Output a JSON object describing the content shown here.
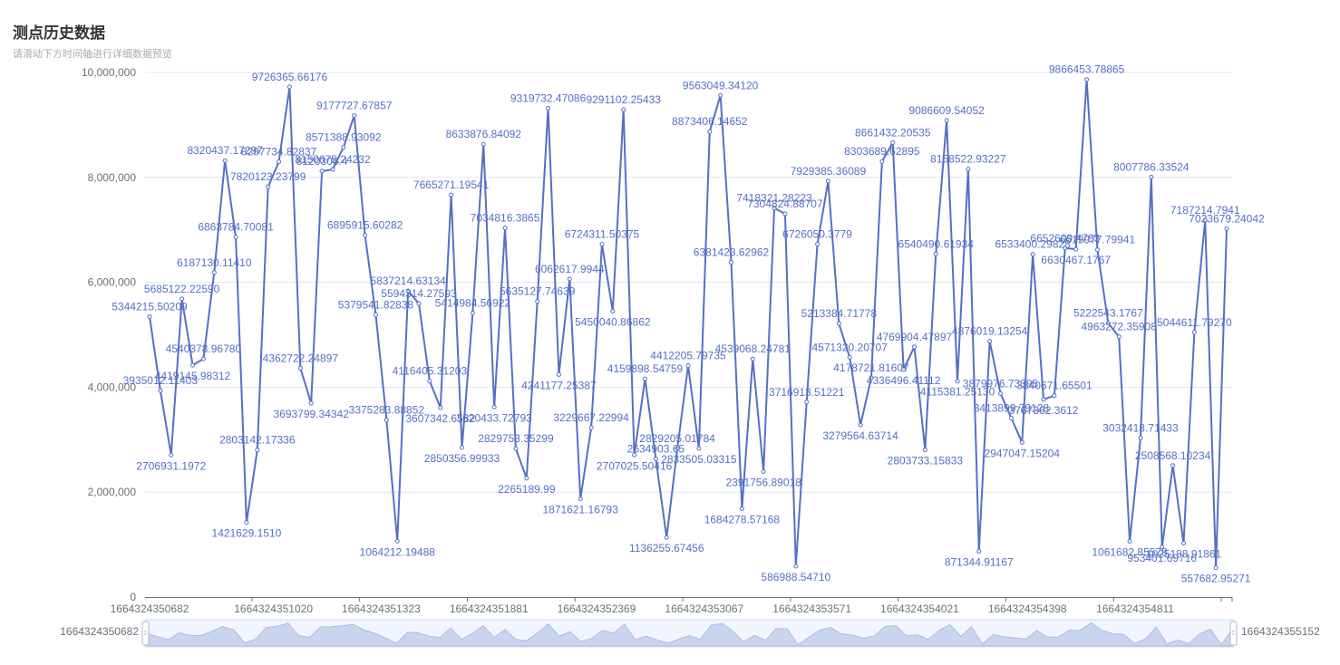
{
  "title": "测点历史数据",
  "subtitle": "请滑动下方时间轴进行详细数据预览",
  "colors": {
    "series": "#5470c6",
    "axis": "#6e7079",
    "grid": "#e0e6f1",
    "slider_fill": "#d2dbee"
  },
  "zoom": {
    "start_label": "1664324350682",
    "end_label": "1664324355152"
  },
  "chart_data": {
    "type": "line",
    "ylim": [
      0,
      10000000
    ],
    "y_ticks": [
      "0",
      "2,000,000",
      "4,000,000",
      "6,000,000",
      "8,000,000",
      "10,000,000"
    ],
    "x_tick_labels": [
      "1664324350682",
      "1664324351020",
      "1664324351323",
      "1664324351881",
      "1664324352369",
      "1664324353067",
      "1664324353571",
      "1664324354021",
      "1664324354398",
      "1664324354811"
    ],
    "grid": true,
    "series": [
      {
        "values": [
          5344215.50209,
          3935012.11403,
          2706931.1972,
          5685122.2259,
          4419145.98312,
          4540378.9678,
          6187130.1141,
          8320437.17297,
          6863784.70081,
          1421629.151,
          2803142.17336,
          7820123.23799,
          8297734.82837,
          9726365.66176,
          4362722.24897,
          3693799.34342,
          8120306.4,
          8150675.24232,
          8571388.93092,
          9177727.67857,
          6895915.60282,
          5379541.82838,
          3375283.88852,
          1064212.19488,
          5837214.63134,
          5594314.27593,
          4116405.31203,
          3607342.6582,
          7665271.19541,
          2850356.99933,
          5414984.56922,
          8633876.84092,
          3620433.72793,
          7034816.3865,
          2829753.35299,
          2265189.99,
          5635127.74639,
          9319732.47086,
          4241177.25387,
          6062617.9944,
          1871621.16793,
          3229667.22994,
          6724311.50375,
          5450040.86862,
          9291102.25433,
          2707025.50416,
          4159898.54759,
          2634903.65,
          1136255.67456,
          2829205.01784,
          4412205.79735,
          2833505.03315,
          8873406.14652,
          9563049.3412,
          6381423.62962,
          1684278.57168,
          4539068.24781,
          2391756.89018,
          7418321.28223,
          7304824.88707,
          586988.5471,
          3716913.51221,
          6726050.3779,
          7929385.36089,
          5213384.71778,
          4571320.20707,
          3279564.63714,
          4178721.81607,
          8303689.62895,
          8661432.20535,
          4336496.41112,
          4769904.47897,
          2803733.15833,
          6540490.61934,
          9086609.54052,
          4115381.2513,
          8158522.93227,
          871344.91167,
          4876019.13254,
          3879976.73395,
          3413899.79128,
          2947047.15204,
          6533400.29828,
          3767362.3612,
          3840671.65501,
          6652609.4783,
          6630467.1767,
          9866453.78865,
          6619977.79941,
          5222543.1767,
          4963272.35908,
          1061682.85578,
          3032418.71433,
          8007786.33524,
          953401.69716,
          2508568.10234,
          1025188.91861,
          5044611.7927,
          7187214.7941,
          557682.95271,
          7023679.24042
        ],
        "labels": [
          "5344215.50209",
          "3935012.11403",
          "2706931.1972",
          "5685122.22590",
          "4419145.98312",
          "4540378.96780",
          "6187130.11410",
          "8320437.17297",
          "6863784.70081",
          "1421629.1510",
          "2803142.17336",
          "7820123.23799",
          "8297734.82837",
          "9726365.66176",
          "4362722.24897",
          "3693799.34342",
          "8120306.4",
          "8150675.24232",
          "8571388.93092",
          "9177727.67857",
          "6895915.60282",
          "5379541.82838",
          "3375283.88852",
          "1064212.19488",
          "5837214.63134",
          "5594314.27593",
          "4116405.31203",
          "3607342.6582",
          "7665271.19541",
          "2850356.99933",
          "5414984.56922",
          "8633876.84092",
          "3620433.72793",
          "7034816.3865",
          "2829753.35299",
          "2265189.99",
          "5635127.74639",
          "9319732.47086",
          "4241177.25387",
          "6062617.9944",
          "1871621.16793",
          "3229667.22994",
          "6724311.50375",
          "5450040.86862",
          "9291102.25433",
          "2707025.50416",
          "4159898.54759",
          "2634903.65",
          "1136255.67456",
          "2829205.01784",
          "4412205.79735",
          "2833505.03315",
          "8873406.14652",
          "9563049.34120",
          "6381423.62962",
          "1684278.57168",
          "4539068.24781",
          "2391756.89018",
          "7418321.28223",
          "7304824.88707",
          "586988.54710",
          "3716913.51221",
          "6726050.3779",
          "7929385.36089",
          "5213384.71778",
          "4571320.20707",
          "3279564.63714",
          "4178721.81607",
          "8303689.62895",
          "8661432.20535",
          "4336496.41112",
          "4769904.47897",
          "2803733.15833",
          "6540490.61934",
          "9086609.54052",
          "4115381.25130",
          "8158522.93227",
          "871344.91167",
          "4876019.13254",
          "3879976.73395",
          "3413899.79128",
          "2947047.15204",
          "6533400.29828",
          "3767362.3612",
          "3840671.65501",
          "6652609.4783",
          "6630467.1767",
          "9866453.78865",
          "6619977.79941",
          "5222543.1767",
          "4963272.35908",
          "1061682.85578",
          "3032418.71433",
          "8007786.33524",
          "953401.69716",
          "2508568.10234",
          "1025188.91861",
          "5044611.79270",
          "7187214.7941",
          "557682.95271",
          "7023679.24042"
        ]
      }
    ]
  }
}
